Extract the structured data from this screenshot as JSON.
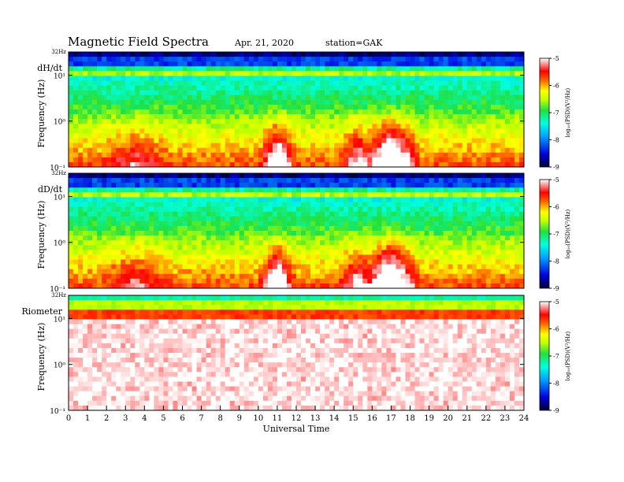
{
  "header": {
    "title": "Magnetic  Field  Spectra",
    "date": "Apr. 21, 2020",
    "station": "station=GAK"
  },
  "chart_data": [
    {
      "type": "heatmap",
      "panel_label": "dH/dt",
      "ylabel": "Frequency  (Hz)",
      "top_label": "32Hz",
      "ytick_labels": [
        "10¹",
        "10⁰",
        "10⁻¹"
      ],
      "yscale": "log",
      "ylim": [
        0.1,
        32
      ],
      "xlim": [
        0,
        24
      ],
      "colorbar": {
        "label": "log₁₀(PSD)(V²/Hz)",
        "range": [
          -9,
          -5
        ],
        "ticks": [
          "-5",
          "-6",
          "-7",
          "-8",
          "-9"
        ]
      },
      "features": [
        {
          "desc": "broadband enhancement",
          "x": [
            10,
            14
          ]
        },
        {
          "desc": "broadband enhancement",
          "x": [
            15.5,
            18.5
          ]
        }
      ]
    },
    {
      "type": "heatmap",
      "panel_label": "dD/dt",
      "ylabel": "Frequency  (Hz)",
      "top_label": "32Hz",
      "ytick_labels": [
        "10¹",
        "10⁰",
        "10⁻¹"
      ],
      "yscale": "log",
      "ylim": [
        0.1,
        32
      ],
      "xlim": [
        0,
        24
      ],
      "colorbar": {
        "label": "log₁₀(PSD)(V²/Hz)",
        "range": [
          -9,
          -5
        ],
        "ticks": [
          "-5",
          "-6",
          "-7",
          "-8",
          "-9"
        ]
      }
    },
    {
      "type": "heatmap",
      "panel_label": "Riometer",
      "ylabel": "Frequency  (Hz)",
      "top_label": "32Hz",
      "ytick_labels": [
        "10¹",
        "10⁰",
        "10⁻¹"
      ],
      "yscale": "log",
      "ylim": [
        0.1,
        32
      ],
      "xlim": [
        0,
        24
      ],
      "colorbar": {
        "label": "log₁₀(PSD)(V²/Hz)",
        "range": [
          -9,
          -5
        ],
        "ticks": [
          "-5",
          "-6",
          "-7",
          "-8",
          "-9"
        ]
      }
    }
  ],
  "xaxis": {
    "label": "Universal  Time",
    "ticks": [
      "0",
      "1",
      "2",
      "3",
      "4",
      "5",
      "6",
      "7",
      "8",
      "9",
      "10",
      "11",
      "12",
      "13",
      "14",
      "15",
      "16",
      "17",
      "18",
      "19",
      "20",
      "21",
      "22",
      "23",
      "24"
    ]
  }
}
